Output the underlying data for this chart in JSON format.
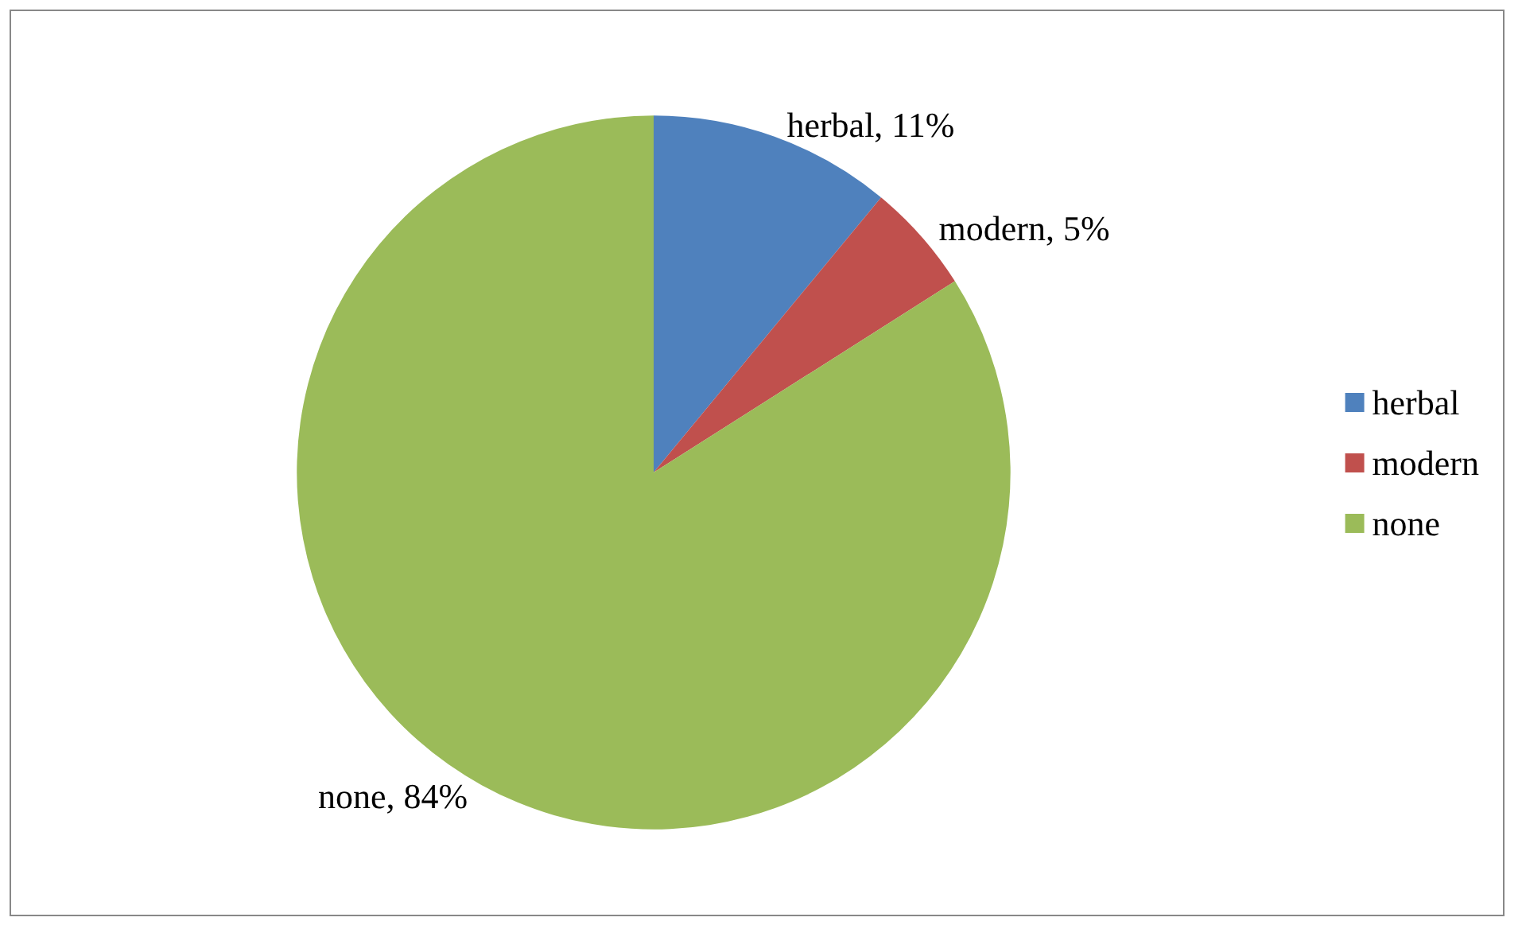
{
  "chart_data": {
    "type": "pie",
    "categories": [
      "herbal",
      "modern",
      "none"
    ],
    "values": [
      11,
      5,
      84
    ],
    "colors": [
      "#4f81bd",
      "#c0504d",
      "#9bbb59"
    ],
    "value_labels": [
      "herbal, 11%",
      "modern, 5%",
      "none, 84%"
    ],
    "legend": "right"
  }
}
